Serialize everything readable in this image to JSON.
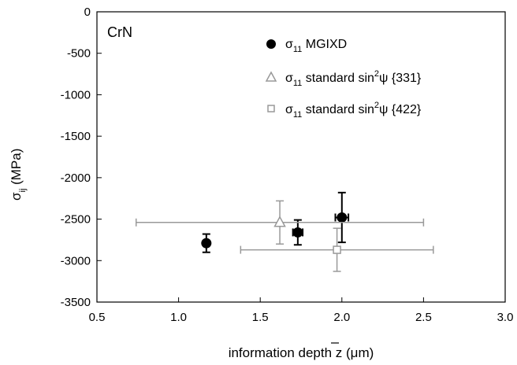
{
  "chart_data": {
    "type": "scatter",
    "annotation": "CrN",
    "ylabel": {
      "main": "σ",
      "sub": "ij",
      "rest": " (MPa)"
    },
    "xlabel": {
      "main": "information depth ",
      "sym": "z",
      "rest": " (μm)"
    },
    "xlim": [
      0.5,
      3.0
    ],
    "ylim": [
      -3500,
      0
    ],
    "x_ticks": [
      "0.5",
      "1.0",
      "1.5",
      "2.0",
      "2.5",
      "3.0"
    ],
    "x_tick_values": [
      0.5,
      1.0,
      1.5,
      2.0,
      2.5,
      3.0
    ],
    "y_ticks": [
      "0",
      "-500",
      "-1000",
      "-1500",
      "-2000",
      "-2500",
      "-3000",
      "-3500"
    ],
    "y_tick_values": [
      0,
      -500,
      -1000,
      -1500,
      -2000,
      -2500,
      -3000,
      -3500
    ],
    "grid": false,
    "legend_position": "top-right",
    "series": [
      {
        "name": {
          "sigma": "σ",
          "sub": "11",
          "text": " MGIXD"
        },
        "marker": "circle",
        "color": "#000000",
        "points": [
          {
            "x": 1.17,
            "y": -2790,
            "yerr": 110,
            "xerr": 0
          },
          {
            "x": 1.73,
            "y": -2660,
            "yerr": 150,
            "xerr": 0.03
          },
          {
            "x": 2.0,
            "y": -2480,
            "yerr": 300,
            "xerr": 0.04
          }
        ]
      },
      {
        "name": {
          "sigma": "σ",
          "sub": "11",
          "text": " standard sin",
          "sup": "2",
          "psi": "ψ",
          "tail": " {331}"
        },
        "marker": "triangle",
        "color": "#999999",
        "points": [
          {
            "x": 1.62,
            "y": -2540,
            "yerr": 260,
            "xerr_low": 0.88,
            "xerr_high": 0.88
          }
        ]
      },
      {
        "name": {
          "sigma": "σ",
          "sub": "11",
          "text": " standard sin",
          "sup": "2",
          "psi": "ψ",
          "tail": " {422}"
        },
        "marker": "square",
        "color": "#999999",
        "points": [
          {
            "x": 1.97,
            "y": -2870,
            "yerr": 260,
            "xerr_low": 0.59,
            "xerr_high": 0.59
          }
        ]
      }
    ]
  }
}
